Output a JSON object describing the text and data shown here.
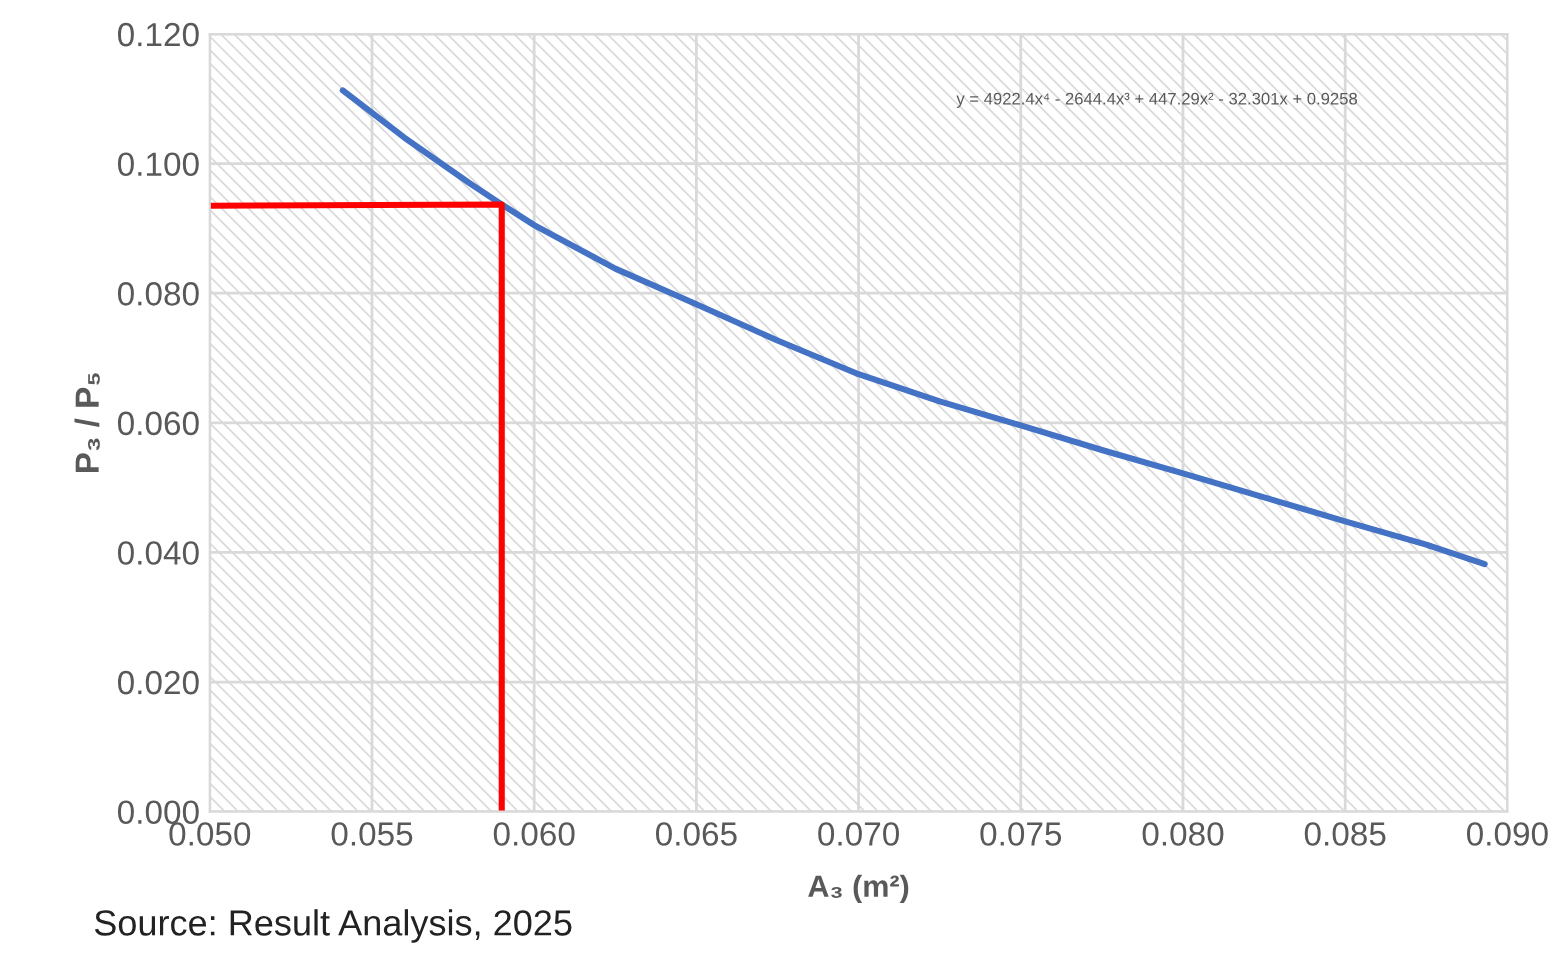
{
  "chart_data": {
    "type": "line",
    "xlabel": "A₃ (m²)",
    "ylabel": "P₃ / P₅",
    "annotations": [
      "y = 4922.4x⁴ - 2644.4x³ + 447.29x² - 32.301x + 0.9258",
      "Source: Result Analysis, 2025"
    ],
    "series": [
      {
        "color": "#4472c4",
        "x": [
          0.0541,
          0.056,
          0.058,
          0.059,
          0.06,
          0.0625,
          0.065,
          0.0675,
          0.07,
          0.0725,
          0.075,
          0.0775,
          0.08,
          0.0825,
          0.085,
          0.0875,
          0.0893
        ],
        "values": [
          0.1113,
          0.104,
          0.097,
          0.0937,
          0.0905,
          0.0838,
          0.0783,
          0.0727,
          0.0675,
          0.0633,
          0.0596,
          0.0558,
          0.0522,
          0.0485,
          0.0448,
          0.0412,
          0.0382
        ]
      },
      {
        "color": "#ff0000",
        "x": [
          0.05,
          0.059,
          0.059
        ],
        "values": [
          0.0935,
          0.0937,
          0.0
        ]
      }
    ],
    "xlim": [
      0.05,
      0.09
    ],
    "xticks": [
      {
        "value": 0.05,
        "label": "0.050"
      },
      {
        "value": 0.055,
        "label": "0.055"
      },
      {
        "value": 0.06,
        "label": "0.060"
      },
      {
        "value": 0.065,
        "label": "0.065"
      },
      {
        "value": 0.07,
        "label": "0.070"
      },
      {
        "value": 0.075,
        "label": "0.075"
      },
      {
        "value": 0.08,
        "label": "0.080"
      },
      {
        "value": 0.085,
        "label": "0.085"
      },
      {
        "value": 0.09,
        "label": "0.090"
      }
    ],
    "ylim": [
      0.0,
      0.12
    ],
    "yticks": [
      {
        "value": 0.0,
        "label": "0.000"
      },
      {
        "value": 0.02,
        "label": "0.020"
      },
      {
        "value": 0.04,
        "label": "0.040"
      },
      {
        "value": 0.06,
        "label": "0.060"
      },
      {
        "value": 0.08,
        "label": "0.080"
      },
      {
        "value": 0.1,
        "label": "0.100"
      },
      {
        "value": 0.12,
        "label": "0.120"
      }
    ],
    "grid": true,
    "marker": "none",
    "line_style": "solid"
  }
}
